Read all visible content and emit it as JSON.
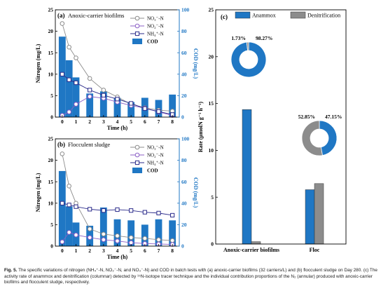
{
  "figure": {
    "caption_label": "Fig. 5.",
    "caption_text": "The specific variations of nitrogen (NH₄⁺-N, NO₂⁻-N, and NO₃⁻-N) and COD in batch tests with (a) anoxic-carrier biofilms (32 carriers/L) and (b) flocculent sludge on Day 280. (c) The activity rate of anammox and denitrification (columnar) detected by ¹⁵N-isotope tracer technique and the individual contribution proportions of the N₂ (annular) produced with anoxic-carrier biofilms and flocculent sludge, respectively."
  },
  "chart_data": [
    {
      "id": "a",
      "type": "bar+line",
      "panel_label": "(a)",
      "title": "Anoxic-carrier biofilms",
      "xlabel": "Time (h)",
      "ylabel_left": "Nitrogen (mg/L)",
      "ylabel_right": "COD (mg/L)",
      "x": [
        0,
        0.5,
        1,
        2,
        3,
        4,
        5,
        6,
        7,
        8
      ],
      "xticks": [
        0,
        1,
        2,
        3,
        4,
        5,
        6,
        7,
        8
      ],
      "ylim_left": [
        0,
        25
      ],
      "yticks_left": [
        0,
        5,
        10,
        15,
        20,
        25
      ],
      "ylim_right": [
        0,
        100
      ],
      "yticks_right": [
        0,
        20,
        40,
        60,
        80,
        100
      ],
      "series": [
        {
          "name": "NO₃⁻-N",
          "kind": "line",
          "marker": "circle",
          "color": "#8c8c8c",
          "values": [
            21.8,
            16.3,
            13.8,
            9.0,
            6.3,
            4.7,
            3.0,
            2.2,
            1.6,
            1.4
          ]
        },
        {
          "name": "NO₂⁻-N",
          "kind": "line",
          "marker": "circle",
          "color": "#8b5fc6",
          "values": [
            0.4,
            1.2,
            3.0,
            4.8,
            4.4,
            3.5,
            2.7,
            2.1,
            1.2,
            0.4
          ]
        },
        {
          "name": "NH₄⁺-N",
          "kind": "line",
          "marker": "square",
          "color": "#2a2a8a",
          "values": [
            10.0,
            8.7,
            8.0,
            6.3,
            5.1,
            4.2,
            3.2,
            2.0,
            1.3,
            0.6
          ]
        },
        {
          "name": "COD",
          "kind": "bar",
          "axis": "right",
          "color": "#1f77c4",
          "values": [
            75,
            53,
            37,
            22,
            24,
            18,
            14,
            18,
            16,
            21
          ]
        }
      ]
    },
    {
      "id": "b",
      "type": "bar+line",
      "panel_label": "(b)",
      "title": "Flocculent sludge",
      "xlabel": "Time (h)",
      "ylabel_left": "Nitrogen (mg/L)",
      "ylabel_right": "COD (mg/L)",
      "x": [
        0,
        0.5,
        1,
        2,
        3,
        4,
        5,
        6,
        7,
        8
      ],
      "xticks": [
        0,
        1,
        2,
        3,
        4,
        5,
        6,
        7,
        8
      ],
      "ylim_left": [
        0,
        25
      ],
      "yticks_left": [
        0,
        5,
        10,
        15,
        20,
        25
      ],
      "ylim_right": [
        0,
        100
      ],
      "yticks_right": [
        0,
        20,
        40,
        60,
        80,
        100
      ],
      "series": [
        {
          "name": "NO₃⁻-N",
          "kind": "line",
          "marker": "circle",
          "color": "#8c8c8c",
          "values": [
            21.5,
            14.0,
            10.0,
            4.0,
            2.8,
            2.4,
            2.0,
            1.8,
            1.5,
            1.3
          ]
        },
        {
          "name": "NO₂⁻-N",
          "kind": "line",
          "marker": "circle",
          "color": "#8b5fc6",
          "values": [
            1.0,
            3.2,
            2.6,
            2.0,
            1.5,
            1.2,
            0.8,
            0.6,
            0.5,
            0.4
          ]
        },
        {
          "name": "NH₄⁺-N",
          "kind": "line",
          "marker": "square",
          "color": "#2a2a8a",
          "values": [
            10.0,
            9.6,
            9.2,
            8.6,
            8.3,
            8.5,
            8.3,
            7.9,
            7.7,
            7.2
          ]
        },
        {
          "name": "COD",
          "kind": "bar",
          "axis": "right",
          "color": "#1f77c4",
          "values": [
            70,
            37,
            22,
            19,
            36,
            25,
            24,
            20,
            25,
            24
          ]
        }
      ]
    },
    {
      "id": "c",
      "type": "bar+pie",
      "panel_label": "(c)",
      "ylabel": "Rate (μmolN g⁻¹ h⁻¹)",
      "ylim": [
        0,
        25
      ],
      "yticks": [
        0,
        5,
        10,
        15,
        20,
        25
      ],
      "categories": [
        "Anoxic-carrier biofilms",
        "Floc"
      ],
      "series": [
        {
          "name": "Anammox",
          "color": "#1f77c4",
          "values": [
            14.35,
            5.8
          ]
        },
        {
          "name": "Denitrification",
          "color": "#8c8c8c",
          "values": [
            0.25,
            6.45
          ]
        }
      ],
      "donuts": [
        {
          "category": "Anoxic-carrier biofilms",
          "labels": [
            "98.27%",
            "1.73%"
          ],
          "values": [
            98.27,
            1.73
          ],
          "colors": [
            "#1f77c4",
            "#8c8c8c"
          ]
        },
        {
          "category": "Floc",
          "labels": [
            "47.15%",
            "52.85%"
          ],
          "values": [
            47.15,
            52.85
          ],
          "colors": [
            "#1f77c4",
            "#8c8c8c"
          ]
        }
      ]
    }
  ]
}
